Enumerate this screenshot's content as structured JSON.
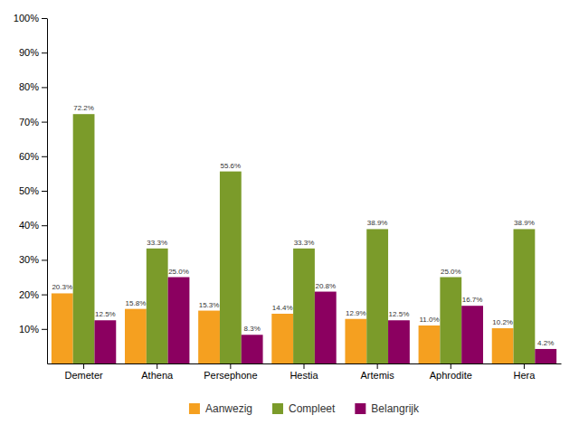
{
  "chart_data": {
    "type": "bar",
    "categories": [
      "Demeter",
      "Athena",
      "Persephone",
      "Hestia",
      "Artemis",
      "Aphrodite",
      "Hera"
    ],
    "series": [
      {
        "name": "Aanwezig",
        "color": "#F5A020",
        "values": [
          20.3,
          15.8,
          15.3,
          14.4,
          12.9,
          11.0,
          10.2
        ],
        "value_labels": [
          "20.3%",
          "15.8%",
          "15.3%",
          "14.4%",
          "12.9%",
          "11.0%",
          "10.2%"
        ]
      },
      {
        "name": "Compleet",
        "color": "#7B9B2A",
        "values": [
          72.2,
          33.3,
          55.6,
          33.3,
          38.9,
          25.0,
          38.9
        ],
        "value_labels": [
          "72.2%",
          "33.3%",
          "55.6%",
          "33.3%",
          "38.9%",
          "25.0%",
          "38.9%"
        ]
      },
      {
        "name": "Belangrijk",
        "color": "#8B0060",
        "values": [
          12.5,
          25.0,
          8.3,
          20.8,
          12.5,
          16.7,
          4.2
        ],
        "value_labels": [
          "12.5%",
          "25.0%",
          "8.3%",
          "20.8%",
          "12.5%",
          "16.7%",
          "4.2%"
        ]
      }
    ],
    "ylim": [
      0,
      100
    ],
    "yticks": [
      {
        "value": 10,
        "label": "10%"
      },
      {
        "value": 20,
        "label": "20%"
      },
      {
        "value": 30,
        "label": "30%"
      },
      {
        "value": 40,
        "label": "40%"
      },
      {
        "value": 50,
        "label": "50%"
      },
      {
        "value": 60,
        "label": "60%"
      },
      {
        "value": 70,
        "label": "70%"
      },
      {
        "value": 80,
        "label": "80%"
      },
      {
        "value": 90,
        "label": "90%"
      },
      {
        "value": 100,
        "label": "100%"
      }
    ],
    "grid": false,
    "data_labels": true,
    "legend": "bottom"
  }
}
